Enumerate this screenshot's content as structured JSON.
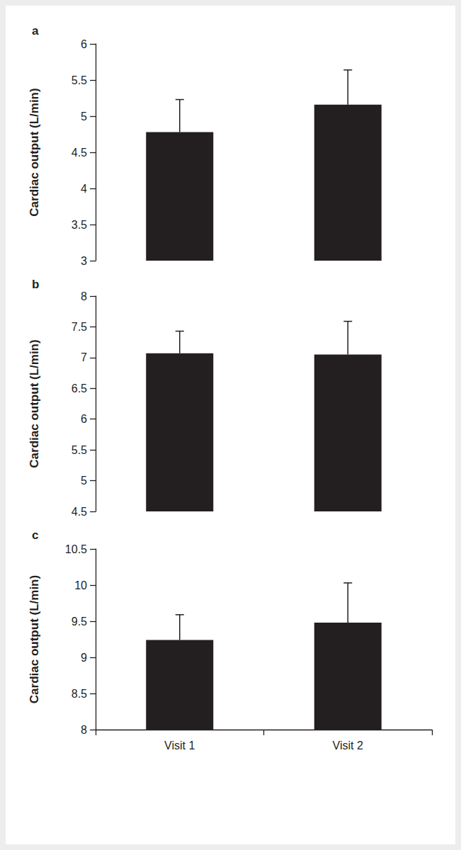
{
  "chart_data": [
    {
      "type": "bar",
      "title": "a",
      "y_label": "Cardiac output (L/min)",
      "categories": [
        "Visit 1",
        "Visit 2"
      ],
      "values": [
        4.78,
        5.16
      ],
      "errors": [
        0.45,
        0.48
      ],
      "color": "#231f20",
      "ylim": [
        3,
        6
      ],
      "yticks": [
        3,
        3.5,
        4,
        4.5,
        5,
        5.5,
        6
      ],
      "grid": false,
      "tick_labels": "y"
    },
    {
      "type": "bar",
      "title": "b",
      "y_label": "Cardiac output (L/min)",
      "categories": [
        "Visit 1",
        "Visit 2"
      ],
      "values": [
        7.07,
        7.05
      ],
      "errors": [
        0.36,
        0.54
      ],
      "color": "#231f20",
      "ylim": [
        4.5,
        8
      ],
      "yticks": [
        4.5,
        5,
        5.5,
        6,
        6.5,
        7,
        7.5,
        8
      ],
      "grid": false,
      "tick_labels": "y"
    },
    {
      "type": "bar",
      "title": "c",
      "y_label": "Cardiac output (L/min)",
      "categories": [
        "Visit 1",
        "Visit 2"
      ],
      "values": [
        9.24,
        9.48
      ],
      "errors": [
        0.35,
        0.55
      ],
      "color": "#231f20",
      "ylim": [
        8,
        10.5
      ],
      "yticks": [
        8,
        8.5,
        9,
        9.5,
        10,
        10.5
      ],
      "grid": false
    }
  ]
}
